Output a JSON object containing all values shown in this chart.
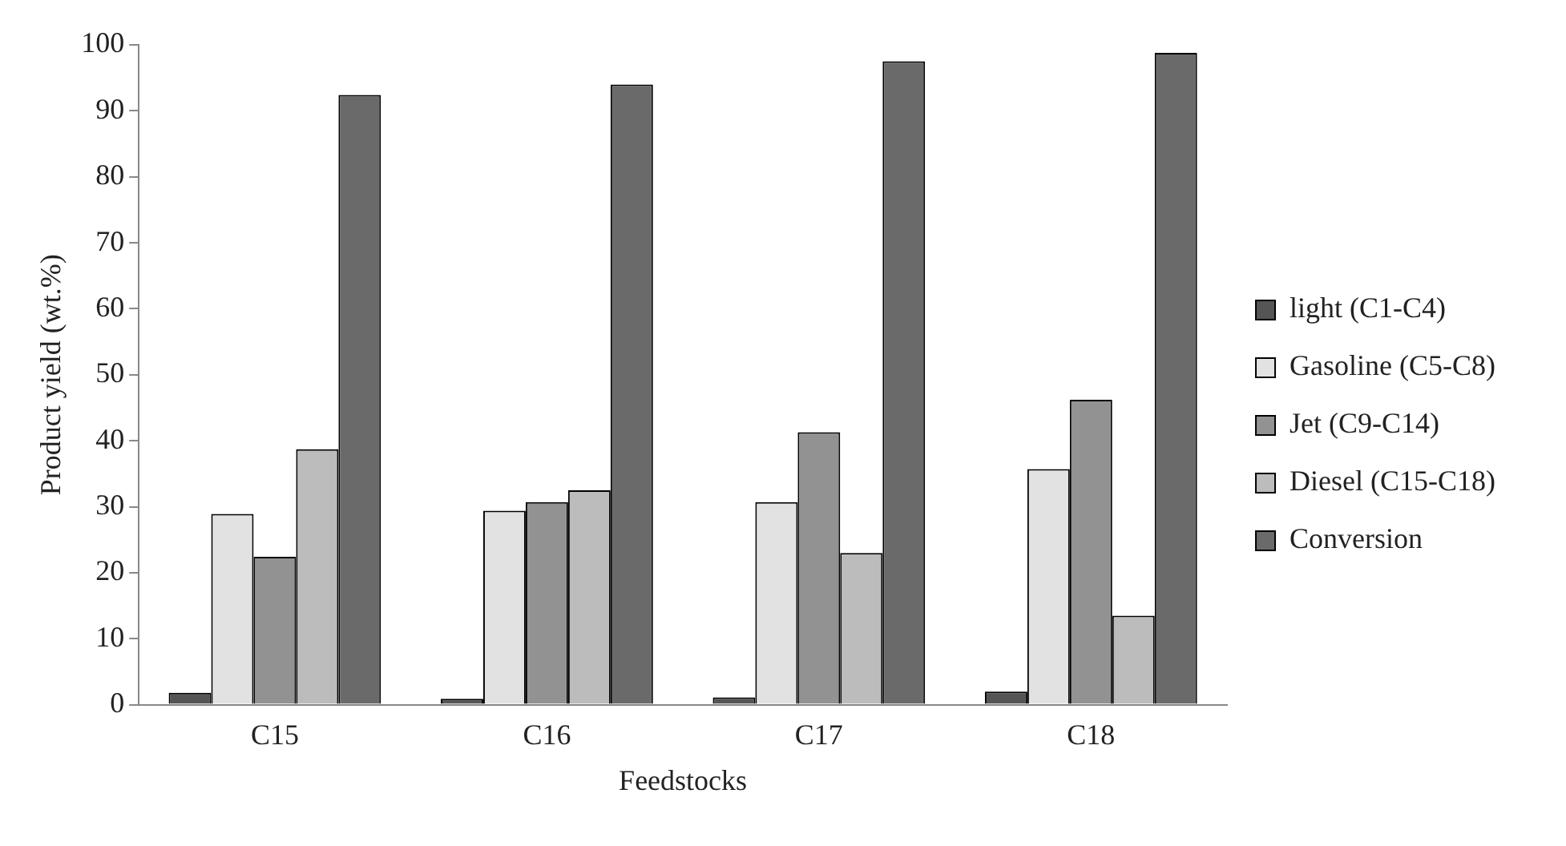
{
  "chart_data": {
    "type": "bar",
    "xlabel": "Feedstocks",
    "ylabel": "Product yield (wt.%)",
    "categories": [
      "C15",
      "C16",
      "C17",
      "C18"
    ],
    "series": [
      {
        "name": "light (C1-C4)",
        "color": "#555555",
        "values": [
          1.8,
          0.9,
          1.1,
          2.0
        ]
      },
      {
        "name": "Gasoline (C5-C8)",
        "color": "#e2e2e2",
        "values": [
          28.9,
          29.4,
          30.7,
          35.7
        ]
      },
      {
        "name": "Jet (C9-C14)",
        "color": "#929292",
        "values": [
          22.4,
          30.7,
          41.3,
          46.2
        ]
      },
      {
        "name": "Diesel (C15-C18)",
        "color": "#bcbcbc",
        "values": [
          38.7,
          32.5,
          23.0,
          13.5
        ]
      },
      {
        "name": "Conversion",
        "color": "#6a6a6a",
        "values": [
          92.4,
          94.0,
          97.5,
          98.8
        ]
      }
    ],
    "ylim": [
      0,
      100
    ],
    "yticks": [
      0,
      10,
      20,
      30,
      40,
      50,
      60,
      70,
      80,
      90,
      100
    ],
    "grid": false,
    "legend": "right"
  }
}
